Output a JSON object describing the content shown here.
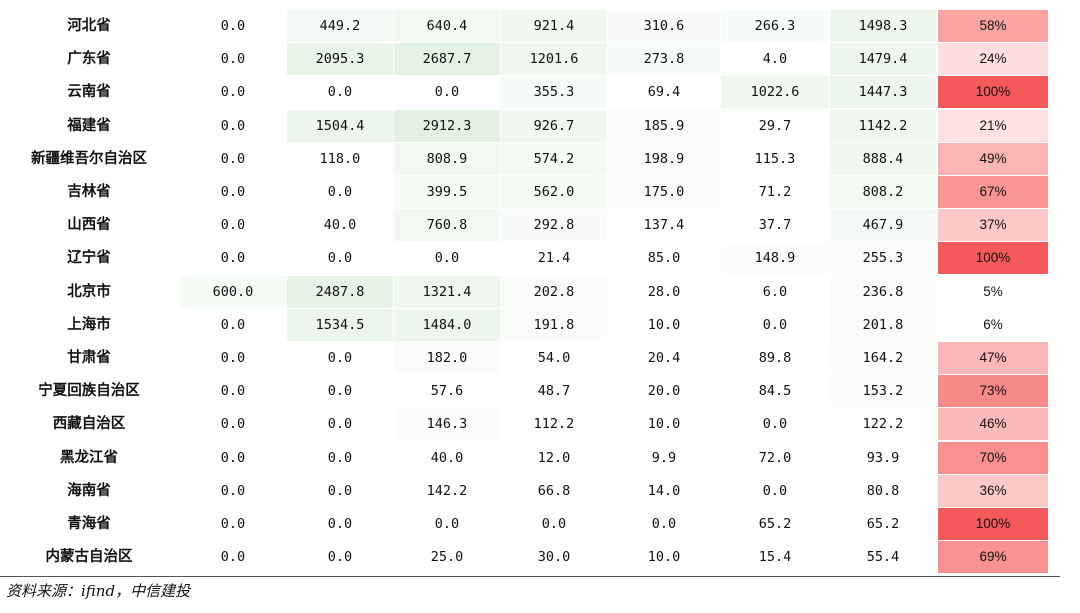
{
  "rows": [
    {
      "name": "河北省",
      "values": [
        "0.0",
        "449.2",
        "640.4",
        "921.4",
        "310.6",
        "266.3",
        "1498.3"
      ],
      "pct": "58%",
      "pct_num": 58
    },
    {
      "name": "广东省",
      "values": [
        "0.0",
        "2095.3",
        "2687.7",
        "1201.6",
        "273.8",
        "4.0",
        "1479.4"
      ],
      "pct": "24%",
      "pct_num": 24
    },
    {
      "name": "云南省",
      "values": [
        "0.0",
        "0.0",
        "0.0",
        "355.3",
        "69.4",
        "1022.6",
        "1447.3"
      ],
      "pct": "100%",
      "pct_num": 100
    },
    {
      "name": "福建省",
      "values": [
        "0.0",
        "1504.4",
        "2912.3",
        "926.7",
        "185.9",
        "29.7",
        "1142.2"
      ],
      "pct": "21%",
      "pct_num": 21
    },
    {
      "name": "新疆维吾尔自治区",
      "values": [
        "0.0",
        "118.0",
        "808.9",
        "574.2",
        "198.9",
        "115.3",
        "888.4"
      ],
      "pct": "49%",
      "pct_num": 49
    },
    {
      "name": "吉林省",
      "values": [
        "0.0",
        "0.0",
        "399.5",
        "562.0",
        "175.0",
        "71.2",
        "808.2"
      ],
      "pct": "67%",
      "pct_num": 67
    },
    {
      "name": "山西省",
      "values": [
        "0.0",
        "40.0",
        "760.8",
        "292.8",
        "137.4",
        "37.7",
        "467.9"
      ],
      "pct": "37%",
      "pct_num": 37
    },
    {
      "name": "辽宁省",
      "values": [
        "0.0",
        "0.0",
        "0.0",
        "21.4",
        "85.0",
        "148.9",
        "255.3"
      ],
      "pct": "100%",
      "pct_num": 100
    },
    {
      "name": "北京市",
      "values": [
        "600.0",
        "2487.8",
        "1321.4",
        "202.8",
        "28.0",
        "6.0",
        "236.8"
      ],
      "pct": "5%",
      "pct_num": 5
    },
    {
      "name": "上海市",
      "values": [
        "0.0",
        "1534.5",
        "1484.0",
        "191.8",
        "10.0",
        "0.0",
        "201.8"
      ],
      "pct": "6%",
      "pct_num": 6
    },
    {
      "name": "甘肃省",
      "values": [
        "0.0",
        "0.0",
        "182.0",
        "54.0",
        "20.4",
        "89.8",
        "164.2"
      ],
      "pct": "47%",
      "pct_num": 47
    },
    {
      "name": "宁夏回族自治区",
      "values": [
        "0.0",
        "0.0",
        "57.6",
        "48.7",
        "20.0",
        "84.5",
        "153.2"
      ],
      "pct": "73%",
      "pct_num": 73
    },
    {
      "name": "西藏自治区",
      "values": [
        "0.0",
        "0.0",
        "146.3",
        "112.2",
        "10.0",
        "0.0",
        "122.2"
      ],
      "pct": "46%",
      "pct_num": 46
    },
    {
      "name": "黑龙江省",
      "values": [
        "0.0",
        "0.0",
        "40.0",
        "12.0",
        "9.9",
        "72.0",
        "93.9"
      ],
      "pct": "70%",
      "pct_num": 70
    },
    {
      "name": "海南省",
      "values": [
        "0.0",
        "0.0",
        "142.2",
        "66.8",
        "14.0",
        "0.0",
        "80.8"
      ],
      "pct": "36%",
      "pct_num": 36
    },
    {
      "name": "青海省",
      "values": [
        "0.0",
        "0.0",
        "0.0",
        "0.0",
        "0.0",
        "65.2",
        "65.2"
      ],
      "pct": "100%",
      "pct_num": 100
    },
    {
      "name": "内蒙古自治区",
      "values": [
        "0.0",
        "0.0",
        "25.0",
        "30.0",
        "10.0",
        "15.4",
        "55.4"
      ],
      "pct": "69%",
      "pct_num": 69
    }
  ],
  "heat": {
    "num_color": "#e3f1e3",
    "num_max": 2912.3,
    "pct_color": "#f55a5a"
  },
  "source": "资料来源：ifind，中信建投"
}
